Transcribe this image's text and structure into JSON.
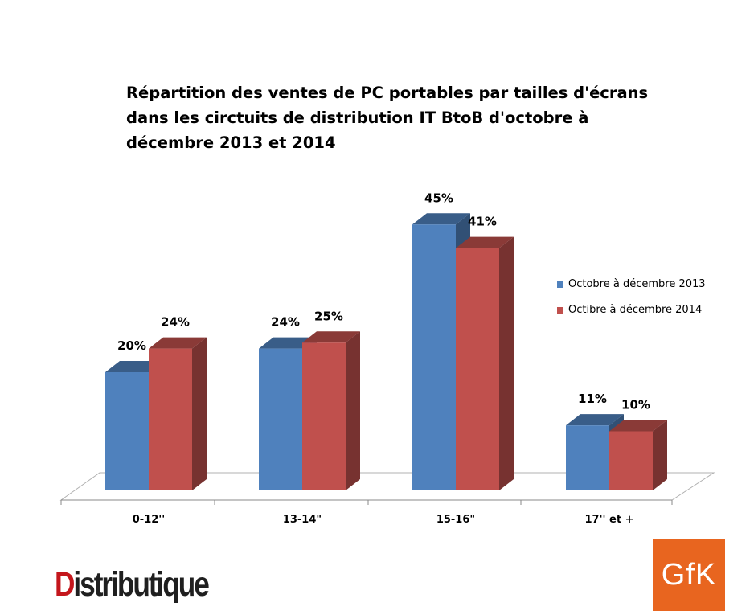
{
  "chart_data": {
    "type": "bar",
    "title": "Répartition des ventes de PC portables par tailles d'écrans dans les circtuits de distribution IT BtoB d'octobre à décembre 2013 et 2014",
    "categories": [
      "0-12''",
      "13-14\"",
      "15-16\"",
      "17'' et +"
    ],
    "series": [
      {
        "name": "Octobre à décembre 2013",
        "values": [
          20,
          24,
          45,
          11
        ],
        "labels": [
          "20%",
          "24%",
          "45%",
          "11%"
        ],
        "color": "#4f81bd"
      },
      {
        "name": "Octibre à décembre 2014",
        "values": [
          24,
          25,
          41,
          10
        ],
        "labels": [
          "24%",
          "25%",
          "41%",
          "10%"
        ],
        "color": "#c0504d"
      }
    ],
    "unit": "%",
    "legend_position": "right",
    "grid": false,
    "three_d": true
  },
  "logos": {
    "distributique": "Distributique",
    "gfk": "GfK"
  }
}
